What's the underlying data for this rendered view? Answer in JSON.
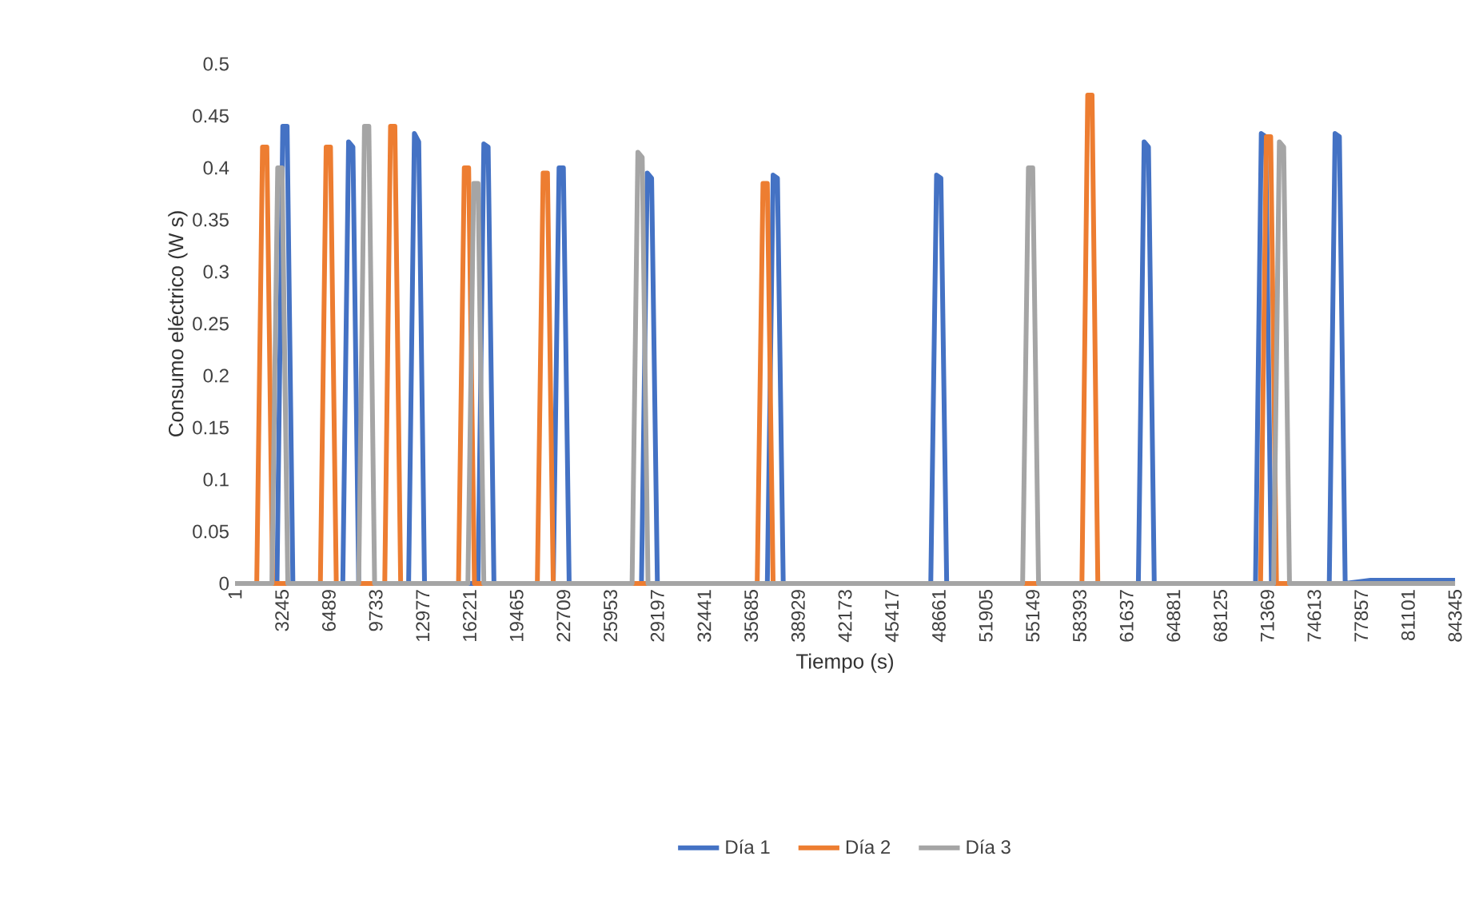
{
  "chart_data": {
    "type": "line",
    "xlabel": "Tiempo (s)",
    "ylabel": "Consumo eléctrico (W s)",
    "xlim": [
      1,
      84345
    ],
    "ylim": [
      0,
      0.5
    ],
    "xticks": [
      1,
      3245,
      6489,
      9733,
      12977,
      16221,
      19465,
      22709,
      25953,
      29197,
      32441,
      35685,
      38929,
      42173,
      45417,
      48661,
      51905,
      55149,
      58393,
      61637,
      64881,
      68125,
      71369,
      74613,
      77857,
      81101,
      84345
    ],
    "yticks": [
      0,
      0.05,
      0.1,
      0.15,
      0.2,
      0.25,
      0.3,
      0.35,
      0.4,
      0.45,
      0.5
    ],
    "legend": "bottom",
    "marker": "none",
    "line_style": "solid",
    "series": [
      {
        "name": "Día 1",
        "color": "#4472c4",
        "x": [
          1,
          2900,
          3300,
          3600,
          4000,
          7450,
          7850,
          8150,
          8550,
          12000,
          12400,
          12700,
          13100,
          16800,
          17200,
          17500,
          17900,
          22000,
          22400,
          22700,
          23100,
          28100,
          28500,
          28800,
          29200,
          36800,
          37200,
          37500,
          37900,
          48100,
          48500,
          48800,
          49200,
          62450,
          62850,
          63150,
          63550,
          70550,
          70950,
          71250,
          71650,
          75650,
          76050,
          76350,
          76750,
          78500,
          84345
        ],
        "values": [
          0,
          0,
          0.44,
          0.44,
          0,
          0,
          0.425,
          0.42,
          0,
          0,
          0.433,
          0.425,
          0,
          0,
          0.423,
          0.42,
          0,
          0,
          0.4,
          0.4,
          0,
          0,
          0.395,
          0.39,
          0,
          0,
          0.393,
          0.39,
          0,
          0,
          0.393,
          0.39,
          0,
          0,
          0.425,
          0.42,
          0,
          0,
          0.433,
          0.43,
          0,
          0,
          0.433,
          0.43,
          0,
          0.003,
          0.003
        ]
      },
      {
        "name": "Día 2",
        "color": "#ed7d31",
        "x": [
          1,
          1500,
          1900,
          2200,
          2600,
          5900,
          6300,
          6600,
          7000,
          10350,
          10750,
          11050,
          11450,
          15450,
          15850,
          16150,
          16550,
          20900,
          21300,
          21600,
          22000,
          36100,
          36500,
          36800,
          37200,
          58550,
          58950,
          59250,
          59650,
          70900,
          71300,
          71600,
          72000,
          84345
        ],
        "values": [
          0,
          0,
          0.42,
          0.42,
          0,
          0,
          0.42,
          0.42,
          0,
          0,
          0.44,
          0.44,
          0,
          0,
          0.4,
          0.4,
          0,
          0,
          0.395,
          0.395,
          0,
          0,
          0.385,
          0.385,
          0,
          0,
          0.47,
          0.47,
          0,
          0,
          0.43,
          0.43,
          0,
          0
        ]
      },
      {
        "name": "Día 3",
        "color": "#a5a5a5",
        "x": [
          1,
          2550,
          2950,
          3250,
          3650,
          8550,
          8950,
          9250,
          9650,
          16100,
          16500,
          16800,
          17200,
          27450,
          27850,
          28150,
          28550,
          54450,
          54850,
          55150,
          55550,
          71800,
          72200,
          72500,
          72900,
          84345
        ],
        "values": [
          0,
          0,
          0.4,
          0.4,
          0,
          0,
          0.44,
          0.44,
          0,
          0,
          0.385,
          0.385,
          0,
          0,
          0.415,
          0.41,
          0,
          0,
          0.4,
          0.4,
          0,
          0,
          0.425,
          0.42,
          0,
          0
        ]
      }
    ]
  }
}
